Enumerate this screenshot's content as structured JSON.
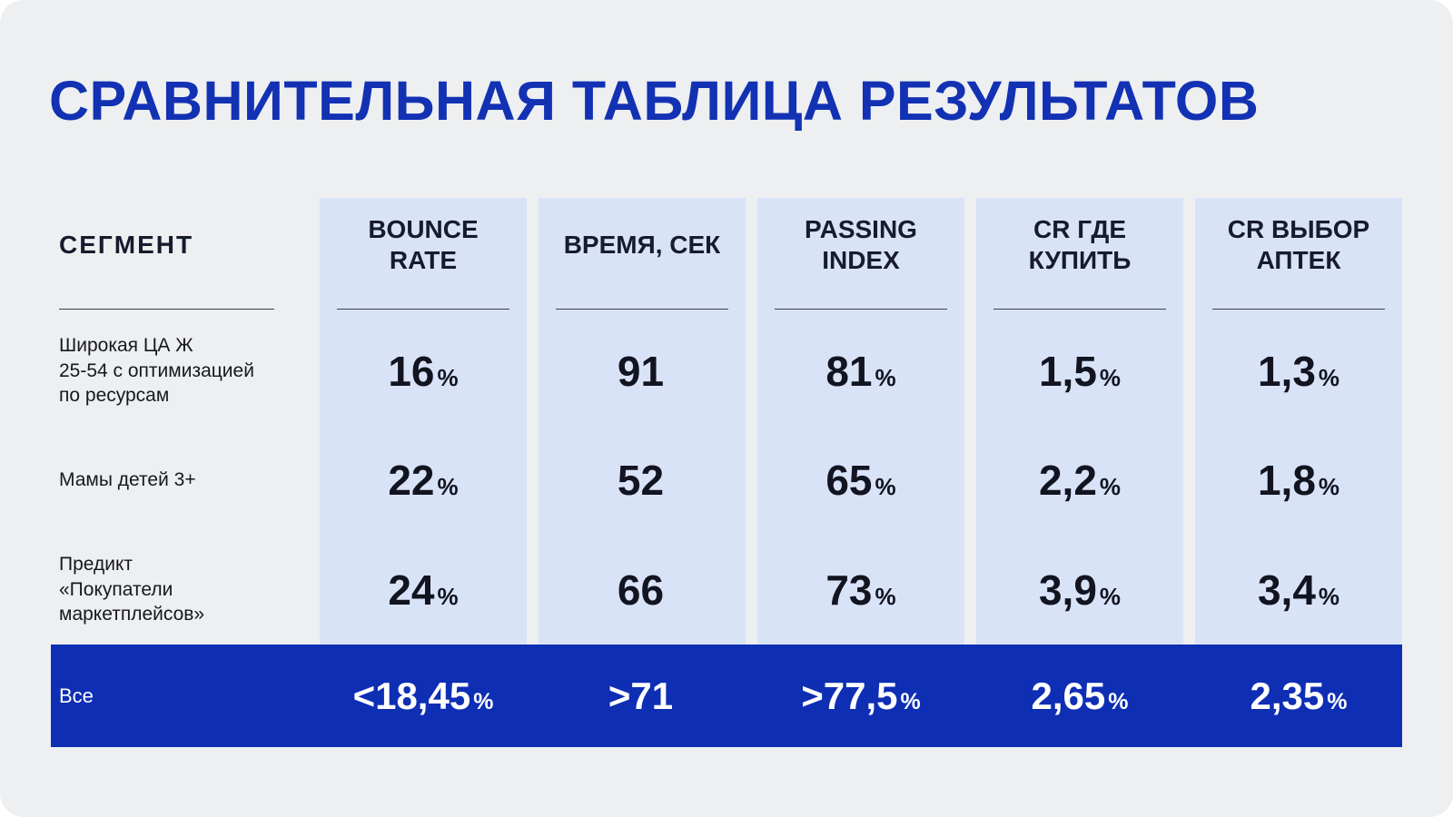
{
  "title": "СРАВНИТЕЛЬНАЯ ТАБЛИЦА РЕЗУЛЬТАТОВ",
  "table": {
    "segment_header": "СЕГМЕНТ",
    "columns": [
      {
        "label": "BOUNCE RATE"
      },
      {
        "label": "ВРЕМЯ, СЕК"
      },
      {
        "label": "PASSING INDEX"
      },
      {
        "label": "CR ГДЕ КУПИТЬ"
      },
      {
        "label": "CR ВЫБОР АПТЕК"
      }
    ],
    "rows": [
      {
        "segment": "Широкая ЦА Ж\n25-54 с оптимизацией\nпо ресурсам",
        "values": [
          {
            "num": "16",
            "unit": "%"
          },
          {
            "num": "91",
            "unit": ""
          },
          {
            "num": "81",
            "unit": "%"
          },
          {
            "num": "1,5",
            "unit": "%"
          },
          {
            "num": "1,3",
            "unit": "%"
          }
        ]
      },
      {
        "segment": "Мамы детей 3+",
        "values": [
          {
            "num": "22",
            "unit": "%"
          },
          {
            "num": "52",
            "unit": ""
          },
          {
            "num": "65",
            "unit": "%"
          },
          {
            "num": "2,2",
            "unit": "%"
          },
          {
            "num": "1,8",
            "unit": "%"
          }
        ]
      },
      {
        "segment": "Предикт\n«Покупатели\nмаркетплейсов»",
        "values": [
          {
            "num": "24",
            "unit": "%"
          },
          {
            "num": "66",
            "unit": ""
          },
          {
            "num": "73",
            "unit": "%"
          },
          {
            "num": "3,9",
            "unit": "%"
          },
          {
            "num": "3,4",
            "unit": "%"
          }
        ]
      }
    ],
    "total_row": {
      "segment": "Все",
      "values": [
        {
          "num": "<18,45",
          "unit": "%"
        },
        {
          "num": ">71",
          "unit": ""
        },
        {
          "num": ">77,5",
          "unit": "%"
        },
        {
          "num": "2,65",
          "unit": "%"
        },
        {
          "num": "2,35",
          "unit": "%"
        }
      ]
    }
  },
  "chart_data": {
    "type": "table",
    "title": "СРАВНИТЕЛЬНАЯ ТАБЛИЦА РЕЗУЛЬТАТОВ",
    "columns": [
      "СЕГМЕНТ",
      "BOUNCE RATE",
      "ВРЕМЯ, СЕК",
      "PASSING INDEX",
      "CR ГДЕ КУПИТЬ",
      "CR ВЫБОР АПТЕК"
    ],
    "rows": [
      [
        "Широкая ЦА Ж 25-54 с оптимизацией по ресурсам",
        "16%",
        "91",
        "81%",
        "1,5%",
        "1,3%"
      ],
      [
        "Мамы детей 3+",
        "22%",
        "52",
        "65%",
        "2,2%",
        "1,8%"
      ],
      [
        "Предикт «Покупатели маркетплейсов»",
        "24%",
        "66",
        "73%",
        "3,9%",
        "3,4%"
      ],
      [
        "Все",
        "<18,45%",
        ">71",
        ">77,5%",
        "2,65%",
        "2,35%"
      ]
    ]
  },
  "colors": {
    "accent_blue": "#1231b3",
    "total_bar_bg": "#0e2eb4",
    "column_bg": "#d9e3f8",
    "background": "#edeff1",
    "text_dark": "#16192c"
  }
}
